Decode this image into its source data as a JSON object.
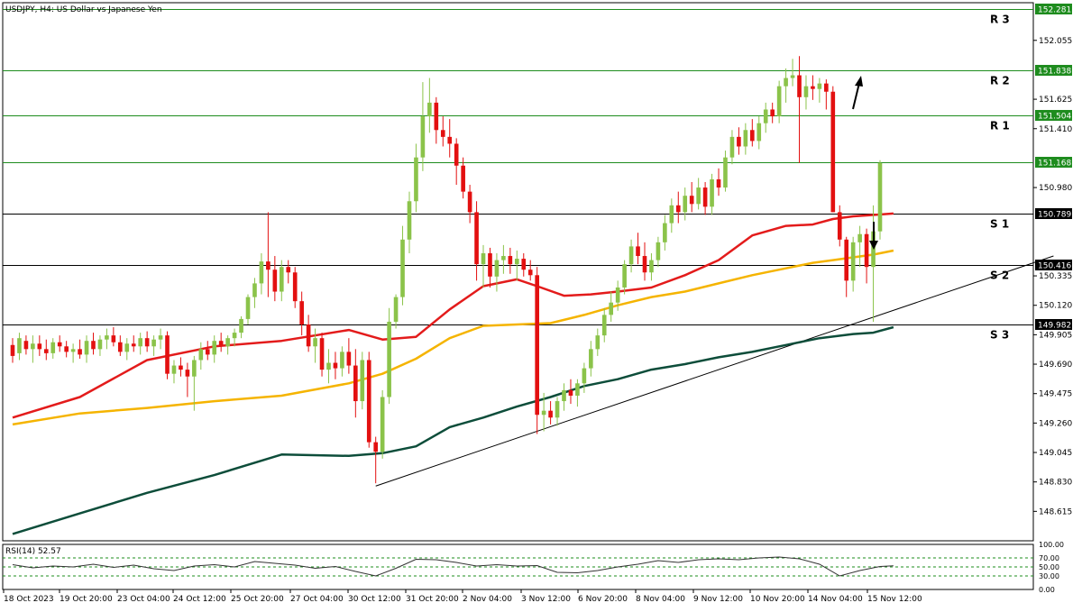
{
  "header": {
    "symbol_title": "USDJPY, H4:  US Dollar vs Japanese Yen",
    "rsi_title": "RSI(14) 52.57"
  },
  "colors": {
    "bull": "#8bc34a",
    "bear": "#e31010",
    "ma_red": "#e31b1b",
    "ma_orange": "#f5b400",
    "ma_dark": "#0d4d3a",
    "level_green": "#1e8c1e",
    "level_black": "#000000",
    "label_green_bg": "#1e8c1e",
    "label_black_bg": "#000000",
    "rsi_line": "#333333"
  },
  "chart_data": [
    {
      "type": "candlestick",
      "title": "USDJPY, H4:  US Dollar vs Japanese Yen",
      "ylim": [
        148.4,
        152.33
      ],
      "grid": false,
      "price_ticks": [
        "152.055",
        "151.625",
        "151.410",
        "150.980",
        "150.335",
        "150.120",
        "149.905",
        "149.690",
        "149.475",
        "149.260",
        "149.045",
        "148.830",
        "148.615"
      ],
      "x_ticks": [
        "18 Oct 2023",
        "19 Oct 20:00",
        "23 Oct 04:00",
        "24 Oct 12:00",
        "25 Oct 20:00",
        "27 Oct 04:00",
        "30 Oct 12:00",
        "31 Oct 20:00",
        "2 Nov 04:00",
        "3 Nov 12:00",
        "6 Nov 20:00",
        "8 Nov 04:00",
        "9 Nov 12:00",
        "10 Nov 20:00",
        "14 Nov 04:00",
        "15 Nov 12:00"
      ],
      "levels": [
        {
          "label": "R 3",
          "price": 152.281,
          "price_label": "152.281",
          "color": "green"
        },
        {
          "label": "R 2",
          "price": 151.838,
          "price_label": "151.838",
          "color": "green"
        },
        {
          "label": "R 1",
          "price": 151.504,
          "price_label": "151.504",
          "color": "green"
        },
        {
          "label": "",
          "price": 151.168,
          "price_label": "151.168",
          "color": "green"
        },
        {
          "label": "S 1",
          "price": 150.789,
          "price_label": "150.789",
          "color": "black"
        },
        {
          "label": "S 2",
          "price": 150.416,
          "price_label": "150.416",
          "color": "black"
        },
        {
          "label": "S 3",
          "price": 149.982,
          "price_label": "149.982",
          "color": "black"
        }
      ],
      "candles": [
        [
          149.83,
          149.88,
          149.7,
          149.75
        ],
        [
          149.77,
          149.92,
          149.72,
          149.88
        ],
        [
          149.86,
          149.9,
          149.76,
          149.8
        ],
        [
          149.8,
          149.9,
          149.7,
          149.84
        ],
        [
          149.84,
          149.9,
          149.75,
          149.8
        ],
        [
          149.8,
          149.87,
          149.72,
          149.77
        ],
        [
          149.77,
          149.88,
          149.73,
          149.85
        ],
        [
          149.85,
          149.9,
          149.78,
          149.82
        ],
        [
          149.82,
          149.86,
          149.74,
          149.78
        ],
        [
          149.78,
          149.84,
          149.7,
          149.8
        ],
        [
          149.8,
          149.87,
          149.73,
          149.76
        ],
        [
          149.76,
          149.9,
          149.7,
          149.86
        ],
        [
          149.86,
          149.92,
          149.76,
          149.8
        ],
        [
          149.8,
          149.9,
          149.75,
          149.87
        ],
        [
          149.87,
          149.95,
          149.8,
          149.9
        ],
        [
          149.9,
          149.96,
          149.82,
          149.85
        ],
        [
          149.85,
          149.9,
          149.75,
          149.78
        ],
        [
          149.78,
          149.88,
          149.72,
          149.84
        ],
        [
          149.84,
          149.9,
          149.78,
          149.82
        ],
        [
          149.82,
          149.92,
          149.76,
          149.88
        ],
        [
          149.88,
          149.93,
          149.78,
          149.82
        ],
        [
          149.82,
          149.9,
          149.75,
          149.87
        ],
        [
          149.87,
          149.95,
          149.8,
          149.9
        ],
        [
          149.9,
          149.93,
          149.58,
          149.62
        ],
        [
          149.62,
          149.72,
          149.55,
          149.68
        ],
        [
          149.68,
          149.74,
          149.6,
          149.65
        ],
        [
          149.65,
          149.7,
          149.45,
          149.6
        ],
        [
          149.6,
          149.75,
          149.35,
          149.72
        ],
        [
          149.72,
          149.85,
          149.65,
          149.8
        ],
        [
          149.8,
          149.86,
          149.72,
          149.76
        ],
        [
          149.76,
          149.9,
          149.7,
          149.86
        ],
        [
          149.86,
          149.92,
          149.78,
          149.82
        ],
        [
          149.82,
          149.9,
          149.76,
          149.88
        ],
        [
          149.88,
          149.95,
          149.82,
          149.92
        ],
        [
          149.92,
          150.04,
          149.88,
          150.02
        ],
        [
          150.02,
          150.2,
          149.98,
          150.18
        ],
        [
          150.18,
          150.32,
          150.1,
          150.28
        ],
        [
          150.28,
          150.5,
          150.2,
          150.44
        ],
        [
          150.44,
          150.8,
          150.18,
          150.38
        ],
        [
          150.38,
          150.48,
          150.15,
          150.22
        ],
        [
          150.22,
          150.45,
          150.15,
          150.4
        ],
        [
          150.4,
          150.45,
          150.28,
          150.36
        ],
        [
          150.36,
          150.4,
          150.1,
          150.15
        ],
        [
          150.15,
          150.22,
          149.9,
          149.98
        ],
        [
          149.98,
          150.05,
          149.78,
          149.82
        ],
        [
          149.82,
          149.95,
          149.7,
          149.88
        ],
        [
          149.88,
          149.92,
          149.6,
          149.65
        ],
        [
          149.65,
          149.8,
          149.55,
          149.7
        ],
        [
          149.7,
          149.78,
          149.58,
          149.66
        ],
        [
          149.66,
          149.82,
          149.6,
          149.78
        ],
        [
          149.78,
          149.88,
          149.62,
          149.68
        ],
        [
          149.68,
          149.8,
          149.3,
          149.42
        ],
        [
          149.42,
          149.78,
          149.36,
          149.72
        ],
        [
          149.72,
          149.78,
          149.08,
          149.12
        ],
        [
          149.12,
          149.16,
          148.82,
          149.05
        ],
        [
          149.05,
          149.5,
          149.0,
          149.45
        ],
        [
          149.45,
          150.1,
          149.4,
          150.0
        ],
        [
          150.0,
          150.2,
          149.95,
          150.18
        ],
        [
          150.18,
          150.7,
          150.12,
          150.6
        ],
        [
          150.6,
          150.95,
          150.5,
          150.88
        ],
        [
          150.88,
          151.3,
          150.8,
          151.2
        ],
        [
          151.2,
          151.75,
          151.1,
          151.5
        ],
        [
          151.5,
          151.78,
          151.38,
          151.6
        ],
        [
          151.6,
          151.64,
          151.3,
          151.4
        ],
        [
          151.4,
          151.5,
          151.28,
          151.35
        ],
        [
          151.35,
          151.48,
          151.2,
          151.3
        ],
        [
          151.3,
          151.34,
          151.0,
          151.14
        ],
        [
          151.14,
          151.2,
          150.9,
          150.95
        ],
        [
          150.95,
          151.0,
          150.72,
          150.8
        ],
        [
          150.8,
          150.88,
          150.3,
          150.42
        ],
        [
          150.42,
          150.56,
          150.25,
          150.5
        ],
        [
          150.5,
          150.54,
          150.25,
          150.33
        ],
        [
          150.33,
          150.5,
          150.22,
          150.45
        ],
        [
          150.45,
          150.56,
          150.35,
          150.48
        ],
        [
          150.48,
          150.54,
          150.35,
          150.42
        ],
        [
          150.42,
          150.52,
          150.3,
          150.46
        ],
        [
          150.46,
          150.5,
          150.33,
          150.38
        ],
        [
          150.38,
          150.45,
          150.3,
          150.34
        ],
        [
          150.34,
          150.4,
          149.18,
          149.32
        ],
        [
          149.32,
          149.48,
          149.2,
          149.35
        ],
        [
          149.35,
          149.42,
          149.25,
          149.3
        ],
        [
          149.3,
          149.45,
          149.24,
          149.42
        ],
        [
          149.42,
          149.55,
          149.35,
          149.5
        ],
        [
          149.5,
          149.58,
          149.4,
          149.46
        ],
        [
          149.46,
          149.58,
          149.38,
          149.55
        ],
        [
          149.55,
          149.7,
          149.48,
          149.66
        ],
        [
          149.66,
          149.86,
          149.6,
          149.8
        ],
        [
          149.8,
          149.95,
          149.75,
          149.9
        ],
        [
          149.9,
          150.1,
          149.85,
          150.05
        ],
        [
          150.05,
          150.22,
          150.0,
          150.14
        ],
        [
          150.14,
          150.3,
          150.08,
          150.25
        ],
        [
          150.25,
          150.45,
          150.2,
          150.42
        ],
        [
          150.42,
          150.6,
          150.36,
          150.55
        ],
        [
          150.55,
          150.65,
          150.42,
          150.48
        ],
        [
          150.48,
          150.58,
          150.3,
          150.36
        ],
        [
          150.36,
          150.5,
          150.3,
          150.45
        ],
        [
          150.45,
          150.62,
          150.4,
          150.58
        ],
        [
          150.58,
          150.78,
          150.52,
          150.72
        ],
        [
          150.72,
          150.9,
          150.65,
          150.85
        ],
        [
          150.85,
          150.95,
          150.72,
          150.8
        ],
        [
          150.8,
          150.98,
          150.74,
          150.92
        ],
        [
          150.92,
          151.02,
          150.8,
          150.86
        ],
        [
          150.86,
          151.05,
          150.82,
          150.98
        ],
        [
          150.98,
          151.02,
          150.78,
          150.84
        ],
        [
          150.84,
          151.08,
          150.78,
          151.04
        ],
        [
          151.04,
          151.12,
          150.92,
          150.98
        ],
        [
          150.98,
          151.25,
          150.95,
          151.2
        ],
        [
          151.2,
          151.4,
          151.15,
          151.35
        ],
        [
          151.35,
          151.42,
          151.22,
          151.28
        ],
        [
          151.28,
          151.45,
          151.22,
          151.4
        ],
        [
          151.4,
          151.48,
          151.28,
          151.32
        ],
        [
          151.32,
          151.5,
          151.26,
          151.45
        ],
        [
          151.45,
          151.6,
          151.38,
          151.55
        ],
        [
          151.55,
          151.6,
          151.45,
          151.5
        ],
        [
          151.5,
          151.76,
          151.45,
          151.72
        ],
        [
          151.72,
          151.85,
          151.6,
          151.78
        ],
        [
          151.78,
          151.92,
          151.72,
          151.8
        ],
        [
          151.8,
          151.94,
          151.16,
          151.64
        ],
        [
          151.64,
          151.8,
          151.55,
          151.72
        ],
        [
          151.72,
          151.8,
          151.62,
          151.7
        ],
        [
          151.7,
          151.78,
          151.6,
          151.74
        ],
        [
          151.74,
          151.77,
          151.55,
          151.68
        ],
        [
          151.68,
          151.72,
          150.8,
          150.8
        ],
        [
          150.8,
          150.85,
          150.55,
          150.6
        ],
        [
          150.6,
          150.62,
          150.18,
          150.3
        ],
        [
          150.3,
          150.62,
          150.22,
          150.58
        ],
        [
          150.58,
          150.7,
          150.4,
          150.64
        ],
        [
          150.64,
          150.68,
          150.28,
          150.4
        ],
        [
          150.4,
          150.85,
          150.0,
          150.66
        ],
        [
          150.66,
          151.18,
          150.6,
          151.16
        ]
      ],
      "moving_averages": [
        {
          "color": "red",
          "x": [
            0,
            10,
            20,
            30,
            40,
            50,
            55,
            60,
            65,
            70,
            75,
            78,
            82,
            86,
            90,
            95,
            100,
            105,
            110,
            115,
            119,
            122,
            125,
            128,
            131
          ],
          "values": [
            149.3,
            149.45,
            149.72,
            149.82,
            149.86,
            149.94,
            149.87,
            149.89,
            150.09,
            150.26,
            150.31,
            150.26,
            150.19,
            150.2,
            150.22,
            150.25,
            150.34,
            150.45,
            150.63,
            150.7,
            150.71,
            150.75,
            150.77,
            150.78,
            150.79
          ]
        },
        {
          "color": "orange",
          "x": [
            0,
            10,
            20,
            30,
            40,
            50,
            55,
            60,
            65,
            70,
            75,
            80,
            85,
            90,
            95,
            100,
            105,
            110,
            115,
            119,
            122,
            125,
            128,
            131
          ],
          "values": [
            149.25,
            149.33,
            149.37,
            149.42,
            149.46,
            149.55,
            149.62,
            149.73,
            149.88,
            149.97,
            149.98,
            149.99,
            150.05,
            150.12,
            150.18,
            150.22,
            150.28,
            150.34,
            150.39,
            150.43,
            150.45,
            150.47,
            150.49,
            150.52
          ]
        },
        {
          "color": "dark",
          "x": [
            0,
            10,
            20,
            30,
            40,
            50,
            55,
            60,
            65,
            70,
            75,
            80,
            85,
            90,
            95,
            100,
            105,
            110,
            115,
            120,
            125,
            128,
            131
          ],
          "values": [
            148.45,
            148.6,
            148.75,
            148.88,
            149.03,
            149.02,
            149.04,
            149.09,
            149.23,
            149.3,
            149.38,
            149.45,
            149.53,
            149.58,
            149.65,
            149.69,
            149.74,
            149.78,
            149.83,
            149.88,
            149.91,
            149.92,
            149.96
          ]
        }
      ],
      "trendline": [
        [
          54,
          148.8
        ],
        [
          126,
          150.0
        ]
      ]
    },
    {
      "type": "line",
      "title": "RSI(14) 52.57",
      "ylim": [
        0,
        100
      ],
      "ticks": [
        "100.00",
        "70.00",
        "50.00",
        "30.00",
        "0.00"
      ],
      "levels": [
        100,
        70,
        50,
        30,
        0
      ],
      "x": [
        0,
        3,
        6,
        9,
        12,
        15,
        18,
        21,
        24,
        27,
        30,
        33,
        36,
        39,
        42,
        45,
        48,
        51,
        54,
        57,
        60,
        63,
        66,
        69,
        72,
        75,
        78,
        81,
        84,
        87,
        90,
        93,
        96,
        99,
        102,
        105,
        108,
        111,
        114,
        117,
        120,
        123,
        126,
        129,
        131
      ],
      "values": [
        55,
        48,
        52,
        50,
        56,
        49,
        54,
        46,
        42,
        52,
        55,
        50,
        62,
        58,
        54,
        47,
        51,
        40,
        30,
        47,
        67,
        66,
        60,
        52,
        55,
        52,
        53,
        38,
        37,
        42,
        50,
        56,
        64,
        60,
        66,
        68,
        66,
        70,
        72,
        68,
        56,
        30,
        42,
        51,
        52.57
      ]
    }
  ]
}
